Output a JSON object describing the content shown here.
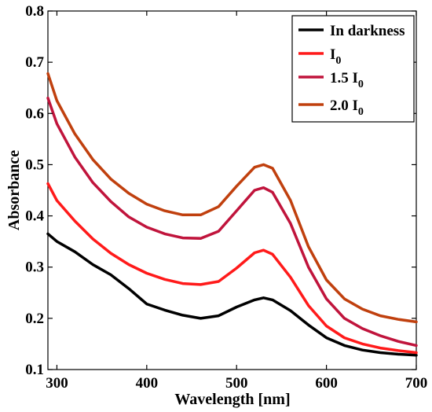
{
  "chart_data": {
    "type": "line",
    "xlabel": "Wavelength [nm]",
    "ylabel": "Absorbance",
    "xlim": [
      290,
      700
    ],
    "ylim": [
      0.1,
      0.8
    ],
    "xticks": [
      300,
      400,
      500,
      600,
      700
    ],
    "yticks": [
      0.1,
      0.2,
      0.3,
      0.4,
      0.5,
      0.6,
      0.7,
      0.8
    ],
    "grid": false,
    "legend_position": "top-right",
    "series": [
      {
        "name": "In darkness",
        "legend_main": "In darkness",
        "legend_sub": "",
        "color": "#000000",
        "x": [
          290,
          300,
          320,
          340,
          360,
          380,
          400,
          420,
          440,
          460,
          480,
          500,
          520,
          530,
          540,
          560,
          580,
          600,
          620,
          640,
          660,
          680,
          700
        ],
        "y": [
          0.365,
          0.35,
          0.33,
          0.305,
          0.285,
          0.258,
          0.228,
          0.216,
          0.206,
          0.2,
          0.205,
          0.222,
          0.236,
          0.24,
          0.236,
          0.215,
          0.187,
          0.162,
          0.147,
          0.138,
          0.133,
          0.13,
          0.128
        ]
      },
      {
        "name": "I0",
        "legend_main": "I",
        "legend_sub": "0",
        "color": "#ff1a1a",
        "x": [
          290,
          300,
          320,
          340,
          360,
          380,
          400,
          420,
          440,
          460,
          480,
          500,
          520,
          530,
          540,
          560,
          580,
          600,
          620,
          640,
          660,
          680,
          700
        ],
        "y": [
          0.463,
          0.43,
          0.39,
          0.355,
          0.327,
          0.305,
          0.288,
          0.276,
          0.268,
          0.266,
          0.272,
          0.298,
          0.328,
          0.333,
          0.325,
          0.28,
          0.225,
          0.185,
          0.162,
          0.15,
          0.142,
          0.137,
          0.133
        ]
      },
      {
        "name": "1.5 I0",
        "legend_main": "1.5 I",
        "legend_sub": "0",
        "color": "#c0143c",
        "x": [
          290,
          300,
          320,
          340,
          360,
          380,
          400,
          420,
          440,
          460,
          480,
          500,
          520,
          530,
          540,
          560,
          580,
          600,
          620,
          640,
          660,
          680,
          700
        ],
        "y": [
          0.63,
          0.58,
          0.515,
          0.465,
          0.428,
          0.398,
          0.378,
          0.365,
          0.357,
          0.356,
          0.37,
          0.41,
          0.45,
          0.455,
          0.446,
          0.385,
          0.3,
          0.238,
          0.2,
          0.18,
          0.166,
          0.155,
          0.147
        ]
      },
      {
        "name": "2.0 I0",
        "legend_main": "2.0 I",
        "legend_sub": "0",
        "color": "#c0400e",
        "x": [
          290,
          300,
          320,
          340,
          360,
          380,
          400,
          420,
          440,
          460,
          480,
          500,
          520,
          530,
          540,
          560,
          580,
          600,
          620,
          640,
          660,
          680,
          700
        ],
        "y": [
          0.678,
          0.625,
          0.56,
          0.51,
          0.472,
          0.444,
          0.423,
          0.41,
          0.402,
          0.402,
          0.418,
          0.458,
          0.495,
          0.5,
          0.493,
          0.43,
          0.34,
          0.275,
          0.238,
          0.218,
          0.205,
          0.198,
          0.193
        ]
      }
    ]
  }
}
